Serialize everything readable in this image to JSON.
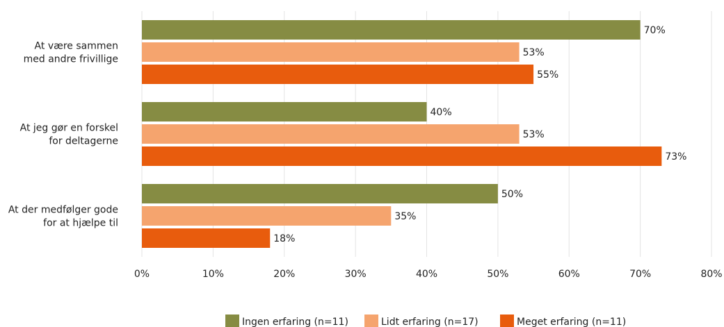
{
  "chart_data": {
    "type": "bar",
    "orientation": "horizontal",
    "categories": [
      [
        "At være sammen",
        "med andre frivillige"
      ],
      [
        "At jeg gør en forskel",
        "for deltagerne"
      ],
      [
        "At der medfølger gode",
        "for at hjælpe til"
      ]
    ],
    "series": [
      {
        "name": "Ingen erfaring (n=11)",
        "color": "#868c43",
        "values": [
          70,
          40,
          50
        ]
      },
      {
        "name": "Lidt erfaring (n=17)",
        "color": "#f5a46e",
        "values": [
          53,
          53,
          35
        ]
      },
      {
        "name": "Meget erfaring (n=11)",
        "color": "#e85c0d",
        "values": [
          55,
          73,
          18
        ]
      }
    ],
    "value_suffix": "%",
    "xlim": [
      0,
      80
    ],
    "xticks": [
      0,
      10,
      20,
      30,
      40,
      50,
      60,
      70,
      80
    ],
    "xtick_labels": [
      "0%",
      "10%",
      "20%",
      "30%",
      "40%",
      "50%",
      "60%",
      "70%",
      "80%"
    ],
    "grid": "vertical",
    "legend_position": "bottom-center"
  }
}
